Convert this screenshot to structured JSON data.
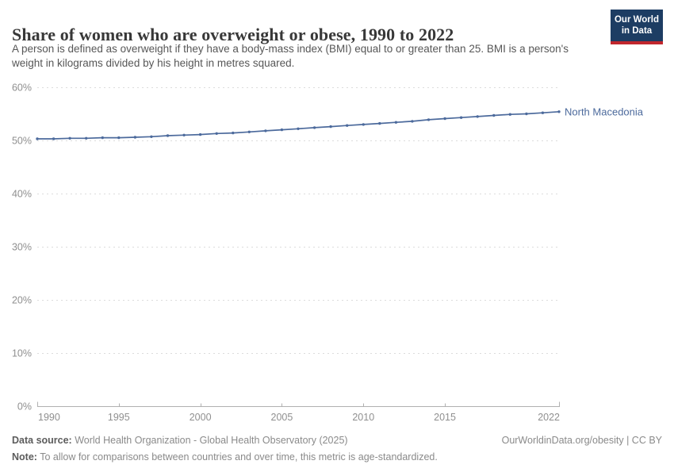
{
  "header": {
    "title": "Share of women who are overweight or obese, 1990 to 2022",
    "subtitle": "A person is defined as overweight if they have a body-mass index (BMI) equal to or greater than 25. BMI is a person's weight in kilograms divided by his height in metres squared.",
    "logo": {
      "line1": "Our World",
      "line2": "in Data",
      "bg_color": "#1d3d63",
      "accent_color": "#c1272d"
    }
  },
  "chart_data": {
    "type": "line",
    "title": "Share of women who are overweight or obese, 1990 to 2022",
    "xlabel": "",
    "ylabel": "",
    "unit": "%",
    "grid": "dashed-horizontal",
    "legend_position": "end-of-line-label",
    "xlim": [
      1990,
      2022
    ],
    "ylim": [
      0,
      60
    ],
    "x_ticks": [
      1990,
      1995,
      2000,
      2005,
      2010,
      2015,
      2022
    ],
    "y_ticks": [
      0,
      10,
      20,
      30,
      40,
      50,
      60
    ],
    "y_tick_suffix": "%",
    "x": [
      1990,
      1991,
      1992,
      1993,
      1994,
      1995,
      1996,
      1997,
      1998,
      1999,
      2000,
      2001,
      2002,
      2003,
      2004,
      2005,
      2006,
      2007,
      2008,
      2009,
      2010,
      2011,
      2012,
      2013,
      2014,
      2015,
      2016,
      2017,
      2018,
      2019,
      2020,
      2021,
      2022
    ],
    "series": [
      {
        "name": "North Macedonia",
        "color": "#4C6A9C",
        "values": [
          50.3,
          50.3,
          50.4,
          50.4,
          50.5,
          50.5,
          50.6,
          50.7,
          50.9,
          51.0,
          51.1,
          51.3,
          51.4,
          51.6,
          51.8,
          52.0,
          52.2,
          52.4,
          52.6,
          52.8,
          53.0,
          53.2,
          53.4,
          53.6,
          53.9,
          54.1,
          54.3,
          54.5,
          54.7,
          54.9,
          55.0,
          55.2,
          55.4
        ]
      }
    ],
    "colors": {
      "gridline": "#dcdcdc",
      "axis": "#b0b0b0",
      "tick_label": "#8f8f8f"
    }
  },
  "footer": {
    "data_source_label": "Data source:",
    "data_source": " World Health Organization - Global Health Observatory (2025)",
    "url_text": "OurWorldinData.org/obesity | CC BY",
    "note_label": "Note:",
    "note": " To allow for comparisons between countries and over time, this metric is age-standardized."
  }
}
